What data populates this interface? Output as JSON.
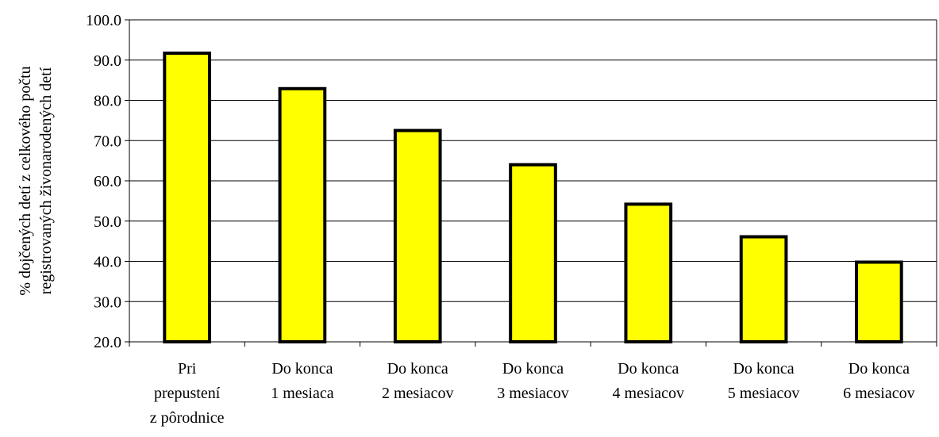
{
  "chart_data": {
    "type": "bar",
    "title": "",
    "xlabel": "",
    "ylabel_lines": [
      "% dojčených detí z celkového počtu",
      "registrovaných živonarodených detí"
    ],
    "categories": [
      [
        "Pri",
        "prepustení",
        "z pôrodnice"
      ],
      [
        "Do konca",
        "1 mesiaca"
      ],
      [
        "Do konca",
        "2 mesiacov"
      ],
      [
        "Do konca",
        "3 mesiacov"
      ],
      [
        "Do konca",
        "4 mesiacov"
      ],
      [
        "Do konca",
        "5 mesiacov"
      ],
      [
        "Do konca",
        "6 mesiacov"
      ]
    ],
    "values": [
      91.7,
      82.9,
      72.5,
      64.0,
      54.2,
      46.1,
      39.8
    ],
    "ylim": [
      20,
      100
    ],
    "yticks": [
      "20.0",
      "30.0",
      "40.0",
      "50.0",
      "60.0",
      "70.0",
      "80.0",
      "90.0",
      "100.0"
    ],
    "grid": true,
    "legend": "none",
    "colors": {
      "bar_fill": "#ffff00",
      "bar_stroke": "#000000",
      "grid": "#000000",
      "axis": "#000000"
    }
  }
}
